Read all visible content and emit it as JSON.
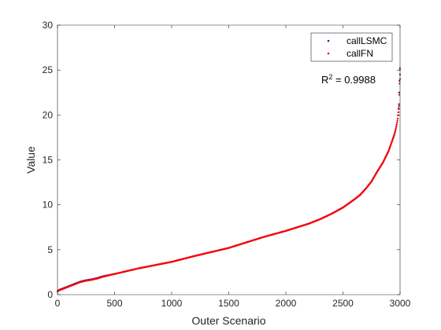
{
  "chart_data": {
    "type": "scatter",
    "xlabel": "Outer Scenario",
    "ylabel": "Value",
    "xlim": [
      0,
      3000
    ],
    "ylim": [
      0,
      30
    ],
    "xticks": [
      0,
      500,
      1000,
      1500,
      2000,
      2500,
      3000
    ],
    "yticks": [
      0,
      5,
      10,
      15,
      20,
      25,
      30
    ],
    "grid": false,
    "legend_position": "top-right",
    "annotation": {
      "base": "R",
      "exponent": "2",
      "rest": " = 0.9988"
    },
    "series": [
      {
        "name": "callLSMC",
        "color": "#1f1f9e",
        "marker": "point",
        "x": [
          1,
          10,
          50,
          100,
          150,
          200,
          250,
          300,
          350,
          400,
          500,
          600,
          700,
          800,
          900,
          1000,
          1200,
          1400,
          1500,
          1600,
          1800,
          2000,
          2200,
          2300,
          2400,
          2500,
          2600,
          2650,
          2700,
          2750,
          2800,
          2850,
          2900,
          2925,
          2950,
          2960,
          2970,
          2980,
          2985,
          2990,
          2995,
          2999,
          3000
        ],
        "y": [
          0.4,
          0.5,
          0.7,
          0.95,
          1.2,
          1.45,
          1.6,
          1.7,
          1.85,
          2.05,
          2.3,
          2.6,
          2.9,
          3.15,
          3.4,
          3.65,
          4.3,
          4.9,
          5.2,
          5.6,
          6.4,
          7.1,
          7.9,
          8.4,
          9.0,
          9.7,
          10.6,
          11.1,
          11.8,
          12.6,
          13.7,
          14.7,
          16.0,
          16.9,
          17.8,
          18.3,
          18.9,
          19.6,
          20.3,
          21.2,
          23.8,
          25.2,
          24.5
        ]
      },
      {
        "name": "callFN",
        "color": "#ff0000",
        "marker": "point",
        "x": [
          1,
          10,
          50,
          100,
          150,
          200,
          250,
          300,
          350,
          400,
          500,
          600,
          700,
          800,
          900,
          1000,
          1200,
          1400,
          1500,
          1600,
          1800,
          2000,
          2200,
          2300,
          2400,
          2500,
          2600,
          2650,
          2700,
          2750,
          2800,
          2850,
          2900,
          2925,
          2950,
          2960,
          2970,
          2980,
          2985,
          2990,
          2995,
          2999,
          3000
        ],
        "y": [
          0.35,
          0.45,
          0.65,
          0.9,
          1.15,
          1.4,
          1.55,
          1.65,
          1.8,
          2.0,
          2.3,
          2.6,
          2.9,
          3.15,
          3.4,
          3.65,
          4.3,
          4.9,
          5.2,
          5.6,
          6.4,
          7.1,
          7.9,
          8.4,
          9.0,
          9.7,
          10.6,
          11.1,
          11.8,
          12.6,
          13.7,
          14.7,
          16.0,
          16.9,
          17.8,
          18.3,
          18.9,
          19.6,
          20.3,
          21.0,
          23.5,
          25.0,
          24.0
        ]
      }
    ]
  }
}
